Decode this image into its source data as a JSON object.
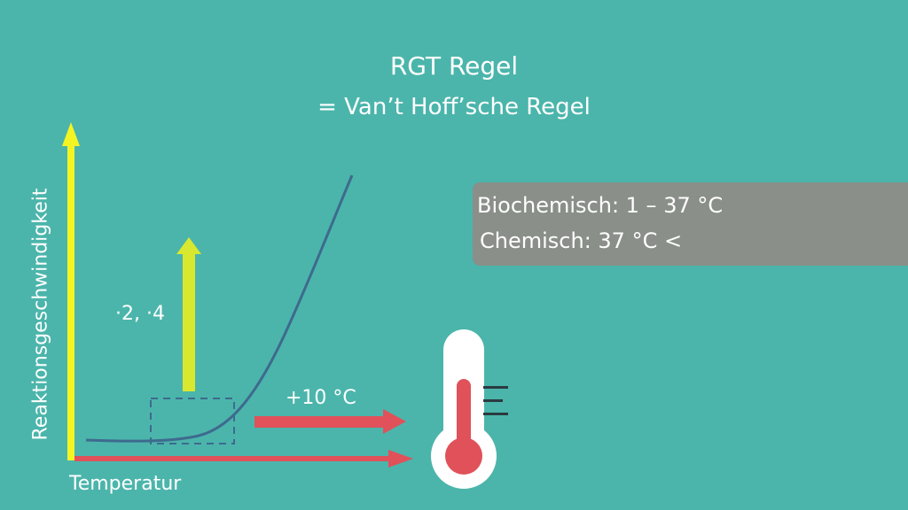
{
  "title": "RGT Regel",
  "subtitle": "= Van’t Hoff’sche Regel",
  "info_box": {
    "line1": "Biochemisch: 1 – 37 °C",
    "line2": "Chemisch: 37 °C <"
  },
  "axes": {
    "ylabel": "Reaktionsgeschwindigkeit",
    "xlabel": "Temperatur"
  },
  "annotations": {
    "factor": "·2, ·4",
    "temperature_step": "+10 °C"
  },
  "colors": {
    "background": "#4bb5ab",
    "y_axis": "#f4f423",
    "x_axis": "#e0515a",
    "curve": "#3e6a8e",
    "box": "#8a8f89",
    "factor_arrow": "#d8e82f",
    "temp_arrow": "#e0515a",
    "thermometer_red": "#e0515a"
  }
}
